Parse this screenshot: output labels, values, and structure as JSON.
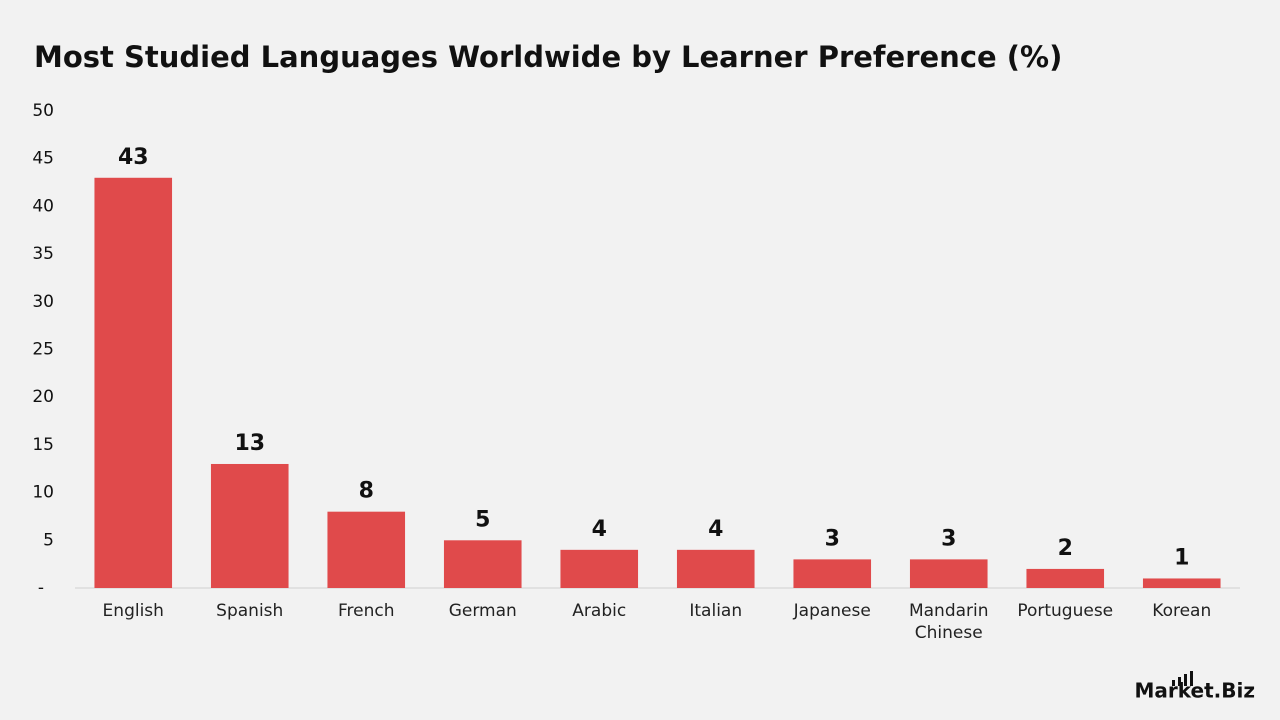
{
  "chart_data": {
    "type": "bar",
    "title": "Most Studied Languages Worldwide by Learner Preference (%)",
    "categories": [
      "English",
      "Spanish",
      "French",
      "German",
      "Arabic",
      "Italian",
      "Japanese",
      "Mandarin Chinese",
      "Portuguese",
      "Korean"
    ],
    "values": [
      43,
      13,
      8,
      5,
      4,
      4,
      3,
      3,
      2,
      1
    ],
    "color": "#e04a4b",
    "ylim": [
      0,
      50
    ],
    "yticks": [
      {
        "value": 0,
        "label": "-"
      },
      5,
      10,
      15,
      20,
      25,
      30,
      35,
      40,
      45,
      50
    ],
    "grid": false
  },
  "logo": "Market.Biz"
}
